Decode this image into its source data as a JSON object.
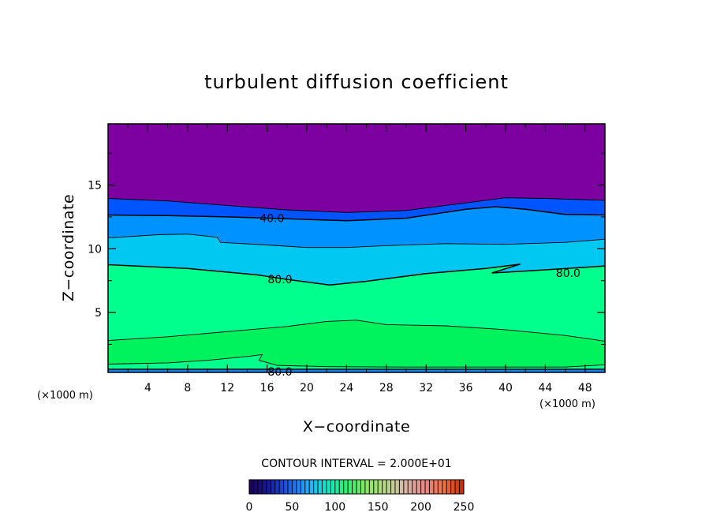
{
  "chart_data": {
    "type": "filled-contour",
    "title": "turbulent diffusion coefficient",
    "xlabel": "X−coordinate",
    "ylabel": "Z−coordinate",
    "x_unit_left": "(×1000 m)",
    "x_unit_right": "(×1000 m)",
    "xlim": [
      0,
      50
    ],
    "ylim": [
      0.3,
      19.8
    ],
    "x_ticks": [
      4,
      8,
      12,
      16,
      20,
      24,
      28,
      32,
      36,
      40,
      44,
      48
    ],
    "x_tick_labels": [
      "4",
      "8",
      "12",
      "16",
      "20",
      "24",
      "28",
      "32",
      "36",
      "40",
      "44",
      "48"
    ],
    "y_ticks": [
      5,
      10,
      15
    ],
    "y_tick_labels": [
      "5",
      "10",
      "15"
    ],
    "contour_interval_text": "CONTOUR INTERVAL = 2.000E+01",
    "contour_labels": [
      {
        "text": "40.0",
        "x": 16.5,
        "y": 12.4
      },
      {
        "text": "80.0",
        "x": 17.3,
        "y": 7.6
      },
      {
        "text": "80.0",
        "x": 46.3,
        "y": 8.1
      },
      {
        "text": "80.0",
        "x": 17.3,
        "y": 0.35
      }
    ],
    "contour_lines": [
      {
        "level": 20,
        "points": [
          [
            0,
            13.95
          ],
          [
            6,
            13.75
          ],
          [
            12,
            13.4
          ],
          [
            18,
            13.05
          ],
          [
            24,
            12.85
          ],
          [
            30,
            13.0
          ],
          [
            36,
            13.6
          ],
          [
            40,
            14.0
          ],
          [
            44,
            13.95
          ],
          [
            50,
            13.8
          ]
        ]
      },
      {
        "level": 40,
        "points": [
          [
            0,
            12.65
          ],
          [
            6,
            12.6
          ],
          [
            12,
            12.5
          ],
          [
            18,
            12.35
          ],
          [
            24,
            12.2
          ],
          [
            30,
            12.4
          ],
          [
            36,
            13.1
          ],
          [
            39,
            13.3
          ],
          [
            42,
            13.1
          ],
          [
            46,
            12.7
          ],
          [
            50,
            12.65
          ]
        ]
      },
      {
        "level": 60,
        "points": [
          [
            0,
            10.85
          ],
          [
            5,
            11.1
          ],
          [
            8,
            11.15
          ],
          [
            11,
            10.9
          ],
          [
            11.3,
            10.5
          ],
          [
            16,
            10.3
          ],
          [
            20,
            10.1
          ],
          [
            24,
            10.1
          ],
          [
            28,
            10.25
          ],
          [
            34,
            10.4
          ],
          [
            40,
            10.35
          ],
          [
            46,
            10.5
          ],
          [
            50,
            10.75
          ]
        ]
      },
      {
        "level": 80,
        "points": [
          [
            0,
            8.75
          ],
          [
            8,
            8.45
          ],
          [
            15,
            7.95
          ],
          [
            18,
            7.6
          ],
          [
            22.3,
            7.15
          ],
          [
            26,
            7.45
          ],
          [
            32,
            8.05
          ],
          [
            38,
            8.45
          ],
          [
            41.5,
            8.8
          ],
          [
            38.6,
            8.1
          ],
          [
            44,
            8.35
          ],
          [
            50,
            8.65
          ]
        ]
      },
      {
        "level": 100,
        "points": [
          [
            0,
            2.8
          ],
          [
            6,
            3.1
          ],
          [
            12,
            3.5
          ],
          [
            18,
            3.9
          ],
          [
            22,
            4.3
          ],
          [
            25,
            4.4
          ],
          [
            28,
            4.05
          ],
          [
            34,
            3.95
          ],
          [
            40,
            3.65
          ],
          [
            46,
            3.2
          ],
          [
            50,
            2.75
          ]
        ]
      },
      {
        "level": 100,
        "points": [
          [
            0,
            0.95
          ],
          [
            6,
            1.05
          ],
          [
            10,
            1.25
          ],
          [
            14,
            1.55
          ],
          [
            15.5,
            1.7
          ],
          [
            15.2,
            1.25
          ],
          [
            17,
            0.85
          ],
          [
            22,
            0.75
          ],
          [
            30,
            0.72
          ],
          [
            40,
            0.72
          ],
          [
            46,
            0.72
          ],
          [
            50,
            0.9
          ]
        ]
      },
      {
        "level": 80,
        "points": [
          [
            0,
            0.55
          ],
          [
            10,
            0.55
          ],
          [
            20,
            0.55
          ],
          [
            30,
            0.55
          ],
          [
            40,
            0.55
          ],
          [
            50,
            0.55
          ]
        ]
      }
    ],
    "colorbar": {
      "min": 0,
      "max": 250,
      "ticks": [
        0,
        50,
        100,
        150,
        200,
        250
      ],
      "tick_labels": [
        "0",
        "50",
        "100",
        "150",
        "200",
        "250"
      ],
      "colors": [
        "#1a0052",
        "#1a1a9e",
        "#1c5ce8",
        "#22aaff",
        "#10e8c8",
        "#30f070",
        "#88e860",
        "#b8d888",
        "#d8b8a8",
        "#e88888",
        "#f07040",
        "#c82800"
      ]
    },
    "layer_colors": {
      "above_20": "#7d00a0",
      "band_20_40": "#0055ff",
      "band_40_60": "#0093ff",
      "band_60_80": "#00c8f0",
      "band_80_100": "#00ff8c",
      "band_core": "#00f25c",
      "surface": "#0088ff"
    }
  }
}
